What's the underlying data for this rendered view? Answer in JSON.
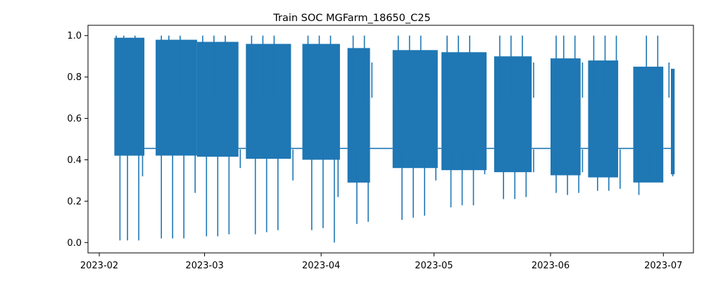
{
  "chart_data": {
    "type": "line",
    "title": "Train SOC MGFarm_18650_C25",
    "xlabel": "",
    "ylabel": "",
    "x_axis_type": "date",
    "xlim": [
      "2023-01-29",
      "2023-07-09"
    ],
    "ylim": [
      -0.05,
      1.05
    ],
    "x_ticks": [
      "2023-02",
      "2023-03",
      "2023-04",
      "2023-05",
      "2023-06",
      "2023-07"
    ],
    "y_ticks": [
      0.0,
      0.2,
      0.4,
      0.6,
      0.8,
      1.0
    ],
    "grid": false,
    "legend": "none",
    "color": "#1f77b4",
    "series": [
      {
        "segments": [
          {
            "kind": "cycling",
            "start": "2023-02-05",
            "end": "2023-02-13",
            "top": 0.99,
            "bottom": 0.42
          },
          {
            "kind": "rest",
            "start": "2023-02-13",
            "end": "2023-02-16",
            "value": 0.455
          },
          {
            "kind": "cycling",
            "start": "2023-02-16",
            "end": "2023-02-27",
            "top": 0.98,
            "bottom": 0.42
          },
          {
            "kind": "rest",
            "start": "2023-02-27",
            "end": "2023-02-27",
            "value": 0.455
          },
          {
            "kind": "cycling",
            "start": "2023-02-27",
            "end": "2023-03-10",
            "top": 0.97,
            "bottom": 0.415
          },
          {
            "kind": "rest",
            "start": "2023-03-10",
            "end": "2023-03-12",
            "value": 0.455
          },
          {
            "kind": "cycling",
            "start": "2023-03-12",
            "end": "2023-03-24",
            "top": 0.96,
            "bottom": 0.405
          },
          {
            "kind": "rest",
            "start": "2023-03-24",
            "end": "2023-03-27",
            "value": 0.455
          },
          {
            "kind": "cycling",
            "start": "2023-03-27",
            "end": "2023-04-06",
            "top": 0.96,
            "bottom": 0.4
          },
          {
            "kind": "rest",
            "start": "2023-04-06",
            "end": "2023-04-08",
            "value": 0.455
          },
          {
            "kind": "cycling",
            "start": "2023-04-08",
            "end": "2023-04-14",
            "top": 0.94,
            "bottom": 0.29
          },
          {
            "kind": "rest",
            "start": "2023-04-14",
            "end": "2023-04-20",
            "value": 0.455
          },
          {
            "kind": "cycling",
            "start": "2023-04-20",
            "end": "2023-05-02",
            "top": 0.93,
            "bottom": 0.36
          },
          {
            "kind": "rest",
            "start": "2023-05-02",
            "end": "2023-05-03",
            "value": 0.455
          },
          {
            "kind": "cycling",
            "start": "2023-05-03",
            "end": "2023-05-15",
            "top": 0.92,
            "bottom": 0.35
          },
          {
            "kind": "rest",
            "start": "2023-05-15",
            "end": "2023-05-17",
            "value": 0.455
          },
          {
            "kind": "cycling",
            "start": "2023-05-17",
            "end": "2023-05-27",
            "top": 0.9,
            "bottom": 0.34
          },
          {
            "kind": "rest",
            "start": "2023-05-27",
            "end": "2023-06-01",
            "value": 0.455
          },
          {
            "kind": "cycling",
            "start": "2023-06-01",
            "end": "2023-06-09",
            "top": 0.89,
            "bottom": 0.325
          },
          {
            "kind": "rest",
            "start": "2023-06-09",
            "end": "2023-06-11",
            "value": 0.455
          },
          {
            "kind": "cycling",
            "start": "2023-06-11",
            "end": "2023-06-19",
            "top": 0.88,
            "bottom": 0.315
          },
          {
            "kind": "rest",
            "start": "2023-06-19",
            "end": "2023-06-23",
            "value": 0.455
          },
          {
            "kind": "cycling",
            "start": "2023-06-23",
            "end": "2023-07-01",
            "top": 0.85,
            "bottom": 0.29
          },
          {
            "kind": "rest",
            "start": "2023-07-01",
            "end": "2023-07-03",
            "value": 0.455
          },
          {
            "kind": "cycling",
            "start": "2023-07-03",
            "end": "2023-07-04",
            "top": 0.84,
            "bottom": 0.33
          }
        ],
        "spikes": [
          {
            "date": "2023-02-05",
            "y": 1.0
          },
          {
            "date": "2023-02-06",
            "y": 0.01
          },
          {
            "date": "2023-02-07",
            "y": 1.0
          },
          {
            "date": "2023-02-08",
            "y": 0.01
          },
          {
            "date": "2023-02-10",
            "y": 1.0
          },
          {
            "date": "2023-02-11",
            "y": 0.01
          },
          {
            "date": "2023-02-12",
            "y": 0.87
          },
          {
            "date": "2023-02-12",
            "y": 0.32
          },
          {
            "date": "2023-02-17",
            "y": 1.0
          },
          {
            "date": "2023-02-17",
            "y": 0.02
          },
          {
            "date": "2023-02-19",
            "y": 1.0
          },
          {
            "date": "2023-02-20",
            "y": 0.02
          },
          {
            "date": "2023-02-22",
            "y": 1.0
          },
          {
            "date": "2023-02-23",
            "y": 0.02
          },
          {
            "date": "2023-02-25",
            "y": 0.87
          },
          {
            "date": "2023-02-26",
            "y": 0.24
          },
          {
            "date": "2023-02-28",
            "y": 1.0
          },
          {
            "date": "2023-03-01",
            "y": 0.03
          },
          {
            "date": "2023-03-03",
            "y": 1.0
          },
          {
            "date": "2023-03-04",
            "y": 0.03
          },
          {
            "date": "2023-03-06",
            "y": 1.0
          },
          {
            "date": "2023-03-07",
            "y": 0.04
          },
          {
            "date": "2023-03-09",
            "y": 0.86
          },
          {
            "date": "2023-03-10",
            "y": 0.36
          },
          {
            "date": "2023-03-13",
            "y": 1.0
          },
          {
            "date": "2023-03-14",
            "y": 0.04
          },
          {
            "date": "2023-03-16",
            "y": 1.0
          },
          {
            "date": "2023-03-17",
            "y": 0.05
          },
          {
            "date": "2023-03-19",
            "y": 1.0
          },
          {
            "date": "2023-03-20",
            "y": 0.06
          },
          {
            "date": "2023-03-23",
            "y": 0.86
          },
          {
            "date": "2023-03-24",
            "y": 0.3
          },
          {
            "date": "2023-03-28",
            "y": 1.0
          },
          {
            "date": "2023-03-29",
            "y": 0.06
          },
          {
            "date": "2023-03-31",
            "y": 1.0
          },
          {
            "date": "2023-04-01",
            "y": 0.07
          },
          {
            "date": "2023-04-03",
            "y": 1.0
          },
          {
            "date": "2023-04-04",
            "y": 0.0
          },
          {
            "date": "2023-04-05",
            "y": 0.78
          },
          {
            "date": "2023-04-05",
            "y": 0.22
          },
          {
            "date": "2023-04-09",
            "y": 1.0
          },
          {
            "date": "2023-04-10",
            "y": 0.09
          },
          {
            "date": "2023-04-12",
            "y": 1.0
          },
          {
            "date": "2023-04-13",
            "y": 0.1
          },
          {
            "date": "2023-04-14",
            "y": 0.87
          },
          {
            "date": "2023-04-21",
            "y": 1.0
          },
          {
            "date": "2023-04-22",
            "y": 0.11
          },
          {
            "date": "2023-04-24",
            "y": 1.0
          },
          {
            "date": "2023-04-25",
            "y": 0.12
          },
          {
            "date": "2023-04-27",
            "y": 1.0
          },
          {
            "date": "2023-04-28",
            "y": 0.13
          },
          {
            "date": "2023-05-01",
            "y": 0.86
          },
          {
            "date": "2023-05-01",
            "y": 0.3
          },
          {
            "date": "2023-05-04",
            "y": 1.0
          },
          {
            "date": "2023-05-05",
            "y": 0.17
          },
          {
            "date": "2023-05-07",
            "y": 1.0
          },
          {
            "date": "2023-05-08",
            "y": 0.18
          },
          {
            "date": "2023-05-10",
            "y": 1.0
          },
          {
            "date": "2023-05-11",
            "y": 0.18
          },
          {
            "date": "2023-05-14",
            "y": 0.87
          },
          {
            "date": "2023-05-14",
            "y": 0.33
          },
          {
            "date": "2023-05-18",
            "y": 1.0
          },
          {
            "date": "2023-05-19",
            "y": 0.21
          },
          {
            "date": "2023-05-21",
            "y": 1.0
          },
          {
            "date": "2023-05-22",
            "y": 0.21
          },
          {
            "date": "2023-05-24",
            "y": 1.0
          },
          {
            "date": "2023-05-25",
            "y": 0.22
          },
          {
            "date": "2023-05-27",
            "y": 0.87
          },
          {
            "date": "2023-05-27",
            "y": 0.34
          },
          {
            "date": "2023-06-02",
            "y": 1.0
          },
          {
            "date": "2023-06-02",
            "y": 0.24
          },
          {
            "date": "2023-06-04",
            "y": 1.0
          },
          {
            "date": "2023-06-05",
            "y": 0.23
          },
          {
            "date": "2023-06-07",
            "y": 1.0
          },
          {
            "date": "2023-06-08",
            "y": 0.24
          },
          {
            "date": "2023-06-09",
            "y": 0.87
          },
          {
            "date": "2023-06-09",
            "y": 0.34
          },
          {
            "date": "2023-06-12",
            "y": 1.0
          },
          {
            "date": "2023-06-13",
            "y": 0.25
          },
          {
            "date": "2023-06-15",
            "y": 1.0
          },
          {
            "date": "2023-06-16",
            "y": 0.25
          },
          {
            "date": "2023-06-18",
            "y": 1.0
          },
          {
            "date": "2023-06-19",
            "y": 0.26
          },
          {
            "date": "2023-06-24",
            "y": 0.8
          },
          {
            "date": "2023-06-24",
            "y": 0.23
          },
          {
            "date": "2023-06-26",
            "y": 1.0
          },
          {
            "date": "2023-06-27",
            "y": 0.32
          },
          {
            "date": "2023-06-29",
            "y": 1.0
          },
          {
            "date": "2023-06-30",
            "y": 0.32
          },
          {
            "date": "2023-07-02",
            "y": 0.87
          },
          {
            "date": "2023-07-03",
            "y": 0.32
          }
        ]
      }
    ]
  }
}
